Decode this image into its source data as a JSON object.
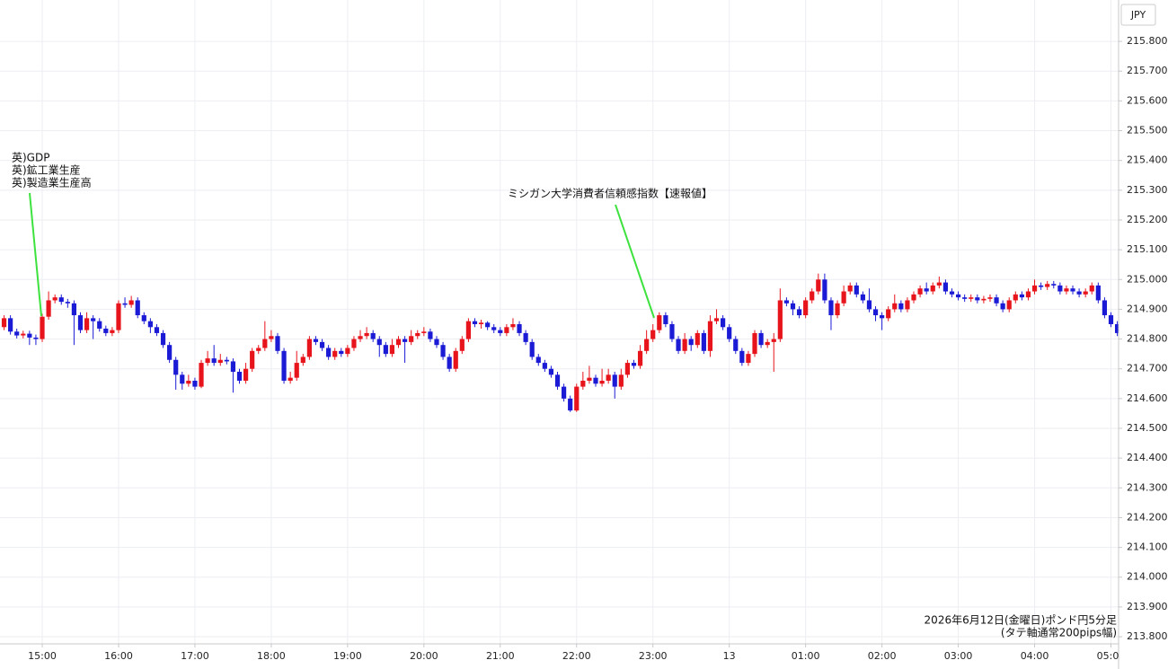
{
  "chart_data": {
    "type": "candlestick",
    "currency": "JPY",
    "up_color": "#e8141c",
    "down_color": "#1b1bd6",
    "grid": true,
    "ylim": [
      213.776,
      215.939
    ],
    "yticks": [
      {
        "value": 213.8,
        "label": "213.800"
      },
      {
        "value": 213.9,
        "label": "213.900"
      },
      {
        "value": 214.0,
        "label": "214.000"
      },
      {
        "value": 214.1,
        "label": "214.100"
      },
      {
        "value": 214.2,
        "label": "214.200"
      },
      {
        "value": 214.3,
        "label": "214.300"
      },
      {
        "value": 214.4,
        "label": "214.400"
      },
      {
        "value": 214.5,
        "label": "214.500"
      },
      {
        "value": 214.6,
        "label": "214.600"
      },
      {
        "value": 214.7,
        "label": "214.700"
      },
      {
        "value": 214.8,
        "label": "214.800"
      },
      {
        "value": 214.9,
        "label": "214.900"
      },
      {
        "value": 215.0,
        "label": "215.000"
      },
      {
        "value": 215.1,
        "label": "215.100"
      },
      {
        "value": 215.2,
        "label": "215.200"
      },
      {
        "value": 215.3,
        "label": "215.300"
      },
      {
        "value": 215.4,
        "label": "215.400"
      },
      {
        "value": 215.5,
        "label": "215.500"
      },
      {
        "value": 215.6,
        "label": "215.600"
      },
      {
        "value": 215.7,
        "label": "215.700"
      },
      {
        "value": 215.8,
        "label": "215.800"
      }
    ],
    "xlim": [
      -0.64,
      175.2
    ],
    "xticks": [
      {
        "value": 6,
        "label": "15:00"
      },
      {
        "value": 18,
        "label": "16:00"
      },
      {
        "value": 30,
        "label": "17:00"
      },
      {
        "value": 42,
        "label": "18:00"
      },
      {
        "value": 54,
        "label": "19:00"
      },
      {
        "value": 66,
        "label": "20:00"
      },
      {
        "value": 78,
        "label": "21:00"
      },
      {
        "value": 90,
        "label": "22:00"
      },
      {
        "value": 102,
        "label": "23:00"
      },
      {
        "value": 114,
        "label": "13"
      },
      {
        "value": 126,
        "label": "01:00"
      },
      {
        "value": 138,
        "label": "02:00"
      },
      {
        "value": 150,
        "label": "03:00"
      },
      {
        "value": 162,
        "label": "04:00"
      },
      {
        "value": 174,
        "label": "05:00"
      }
    ],
    "annotations": [
      {
        "lines": [
          "英)GDP",
          "英)鉱工業生産",
          "英)製造業生産高"
        ]
      },
      {
        "lines": [
          "ミシガン大学消費者信頼感指数【速報値】"
        ]
      }
    ],
    "notes": [
      "2026年6月12日(金曜日)ポンド円5分足",
      "(タテ軸通常200pips幅)"
    ],
    "open": [
      214.84,
      214.87,
      214.825,
      214.812,
      214.818,
      214.805,
      214.8,
      214.875,
      214.93,
      214.94,
      214.925,
      214.92,
      214.88,
      214.83,
      214.87,
      214.86,
      214.835,
      214.82,
      214.83,
      214.92,
      214.915,
      214.93,
      214.88,
      214.86,
      214.84,
      214.82,
      214.78,
      214.73,
      214.68,
      214.65,
      214.66,
      214.64,
      214.72,
      214.735,
      214.72,
      214.73,
      214.725,
      214.69,
      214.66,
      214.7,
      214.76,
      214.77,
      214.8,
      214.81,
      214.76,
      214.66,
      214.67,
      214.72,
      214.74,
      214.8,
      214.79,
      214.77,
      214.74,
      214.76,
      214.75,
      214.77,
      214.8,
      214.81,
      214.82,
      214.8,
      214.78,
      214.75,
      214.78,
      214.8,
      214.79,
      214.81,
      214.82,
      214.825,
      214.8,
      214.78,
      214.74,
      214.7,
      214.76,
      214.8,
      214.86,
      214.85,
      214.855,
      214.84,
      214.83,
      214.82,
      214.84,
      214.85,
      214.82,
      214.79,
      214.74,
      214.72,
      214.7,
      214.68,
      214.64,
      214.6,
      214.56,
      214.64,
      214.66,
      214.67,
      214.65,
      214.66,
      214.68,
      214.64,
      214.68,
      214.72,
      214.71,
      214.76,
      214.8,
      214.83,
      214.88,
      214.85,
      214.8,
      214.76,
      214.8,
      214.78,
      214.82,
      214.76,
      214.86,
      214.87,
      214.84,
      214.8,
      214.76,
      214.72,
      214.75,
      214.82,
      214.78,
      214.79,
      214.8,
      214.93,
      214.92,
      214.9,
      214.88,
      214.93,
      214.96,
      215.0,
      214.93,
      214.88,
      214.92,
      214.96,
      214.98,
      214.95,
      214.93,
      214.9,
      214.88,
      214.87,
      214.9,
      214.92,
      214.9,
      214.93,
      214.95,
      214.97,
      214.96,
      214.98,
      214.99,
      214.96,
      214.95,
      214.94,
      214.935,
      214.94,
      214.93,
      214.935,
      214.94,
      214.92,
      214.9,
      214.93,
      214.95,
      214.94,
      214.96,
      214.98,
      214.975,
      214.985,
      214.98,
      214.96,
      214.97,
      214.96,
      214.95,
      214.96,
      214.98,
      214.93,
      214.88,
      214.85
    ],
    "high": [
      214.88,
      214.88,
      214.835,
      214.828,
      214.828,
      214.815,
      214.885,
      214.96,
      214.95,
      214.95,
      214.935,
      214.93,
      214.89,
      214.89,
      214.88,
      214.87,
      214.845,
      214.84,
      214.93,
      214.94,
      214.945,
      214.94,
      214.89,
      214.87,
      214.85,
      214.83,
      214.79,
      214.74,
      214.69,
      214.68,
      214.67,
      214.73,
      214.76,
      214.78,
      214.75,
      214.74,
      214.735,
      214.7,
      214.72,
      214.77,
      214.78,
      214.86,
      214.83,
      214.82,
      214.77,
      214.69,
      214.76,
      214.75,
      214.81,
      214.81,
      214.8,
      214.78,
      214.77,
      214.77,
      214.78,
      214.81,
      214.83,
      214.84,
      214.83,
      214.81,
      214.79,
      214.8,
      214.81,
      214.81,
      214.83,
      214.83,
      214.84,
      214.835,
      214.81,
      214.79,
      214.75,
      214.77,
      214.81,
      214.87,
      214.87,
      214.865,
      214.86,
      214.85,
      214.84,
      214.85,
      214.87,
      214.86,
      214.83,
      214.8,
      214.75,
      214.73,
      214.71,
      214.69,
      214.65,
      214.61,
      214.65,
      214.69,
      214.71,
      214.68,
      214.7,
      214.7,
      214.69,
      214.7,
      214.73,
      214.73,
      214.78,
      214.83,
      214.85,
      214.89,
      214.89,
      214.86,
      214.81,
      214.82,
      214.81,
      214.83,
      214.83,
      214.88,
      214.9,
      214.88,
      214.85,
      214.81,
      214.77,
      214.76,
      214.83,
      214.83,
      214.8,
      214.82,
      214.97,
      214.94,
      214.93,
      214.91,
      214.94,
      214.97,
      215.02,
      215.02,
      214.94,
      214.93,
      214.98,
      214.99,
      214.99,
      214.96,
      214.97,
      214.91,
      214.89,
      214.91,
      214.95,
      214.93,
      214.94,
      214.96,
      214.98,
      214.99,
      214.99,
      215.01,
      215.0,
      214.97,
      214.96,
      214.95,
      214.95,
      214.95,
      214.945,
      214.95,
      214.95,
      214.93,
      214.94,
      214.96,
      214.96,
      214.97,
      215.0,
      214.99,
      214.995,
      214.995,
      214.99,
      214.98,
      214.98,
      214.97,
      214.97,
      214.99,
      214.99,
      214.94,
      214.89,
      214.86
    ],
    "low": [
      214.83,
      214.815,
      214.802,
      214.802,
      214.78,
      214.78,
      214.79,
      214.865,
      214.92,
      214.915,
      214.905,
      214.78,
      214.82,
      214.82,
      214.8,
      214.825,
      214.81,
      214.81,
      214.82,
      214.905,
      214.905,
      214.87,
      214.85,
      214.82,
      214.81,
      214.77,
      214.72,
      214.63,
      214.63,
      214.64,
      214.63,
      214.635,
      214.71,
      214.71,
      214.71,
      214.715,
      214.62,
      214.65,
      214.65,
      214.69,
      214.75,
      214.76,
      214.79,
      214.75,
      214.65,
      214.65,
      214.66,
      214.71,
      214.73,
      214.78,
      214.76,
      214.73,
      214.73,
      214.74,
      214.74,
      214.76,
      214.79,
      214.8,
      214.79,
      214.74,
      214.74,
      214.74,
      214.77,
      214.72,
      214.78,
      214.8,
      214.81,
      214.79,
      214.77,
      214.73,
      214.69,
      214.69,
      214.75,
      214.79,
      214.84,
      214.835,
      214.83,
      214.82,
      214.81,
      214.81,
      214.83,
      214.81,
      214.78,
      214.73,
      214.71,
      214.69,
      214.67,
      214.63,
      214.59,
      214.555,
      214.555,
      214.63,
      214.65,
      214.64,
      214.64,
      214.65,
      214.6,
      214.63,
      214.67,
      214.7,
      214.7,
      214.75,
      214.79,
      214.82,
      214.84,
      214.79,
      214.75,
      214.75,
      214.76,
      214.77,
      214.75,
      214.74,
      214.85,
      214.83,
      214.79,
      214.75,
      214.71,
      214.71,
      214.74,
      214.77,
      214.77,
      214.69,
      214.79,
      214.91,
      214.88,
      214.87,
      214.87,
      214.92,
      214.95,
      214.92,
      214.83,
      214.87,
      214.91,
      214.95,
      214.94,
      214.92,
      214.89,
      214.86,
      214.83,
      214.86,
      214.89,
      214.89,
      214.89,
      214.92,
      214.94,
      214.95,
      214.95,
      214.97,
      214.95,
      214.94,
      214.93,
      214.925,
      214.925,
      214.92,
      214.92,
      214.925,
      214.91,
      214.89,
      214.89,
      214.92,
      214.93,
      214.93,
      214.95,
      214.965,
      214.965,
      214.97,
      214.95,
      214.95,
      214.95,
      214.94,
      214.94,
      214.95,
      214.92,
      214.87,
      214.84,
      214.81
    ],
    "close": [
      214.87,
      214.825,
      214.812,
      214.818,
      214.805,
      214.8,
      214.875,
      214.93,
      214.94,
      214.925,
      214.92,
      214.88,
      214.83,
      214.87,
      214.86,
      214.835,
      214.82,
      214.83,
      214.92,
      214.915,
      214.93,
      214.88,
      214.86,
      214.84,
      214.82,
      214.78,
      214.73,
      214.68,
      214.65,
      214.66,
      214.64,
      214.72,
      214.735,
      214.72,
      214.73,
      214.725,
      214.69,
      214.66,
      214.7,
      214.76,
      214.77,
      214.8,
      214.81,
      214.76,
      214.66,
      214.67,
      214.72,
      214.74,
      214.8,
      214.79,
      214.77,
      214.74,
      214.76,
      214.75,
      214.77,
      214.8,
      214.81,
      214.82,
      214.8,
      214.78,
      214.75,
      214.78,
      214.8,
      214.79,
      214.81,
      214.82,
      214.825,
      214.8,
      214.78,
      214.74,
      214.7,
      214.76,
      214.8,
      214.86,
      214.85,
      214.855,
      214.84,
      214.83,
      214.82,
      214.84,
      214.85,
      214.82,
      214.79,
      214.74,
      214.72,
      214.7,
      214.68,
      214.64,
      214.6,
      214.56,
      214.64,
      214.66,
      214.67,
      214.65,
      214.66,
      214.68,
      214.64,
      214.68,
      214.72,
      214.71,
      214.76,
      214.8,
      214.83,
      214.88,
      214.85,
      214.8,
      214.76,
      214.8,
      214.78,
      214.82,
      214.76,
      214.86,
      214.87,
      214.84,
      214.8,
      214.76,
      214.72,
      214.75,
      214.82,
      214.78,
      214.79,
      214.8,
      214.93,
      214.92,
      214.9,
      214.88,
      214.93,
      214.96,
      215.0,
      214.93,
      214.88,
      214.92,
      214.96,
      214.98,
      214.95,
      214.93,
      214.9,
      214.88,
      214.87,
      214.9,
      214.92,
      214.9,
      214.93,
      214.95,
      214.97,
      214.96,
      214.98,
      214.99,
      214.96,
      214.95,
      214.94,
      214.935,
      214.94,
      214.93,
      214.935,
      214.94,
      214.92,
      214.9,
      214.93,
      214.95,
      214.94,
      214.96,
      214.98,
      214.975,
      214.985,
      214.98,
      214.96,
      214.97,
      214.96,
      214.95,
      214.96,
      214.98,
      214.93,
      214.88,
      214.85,
      214.82
    ]
  }
}
